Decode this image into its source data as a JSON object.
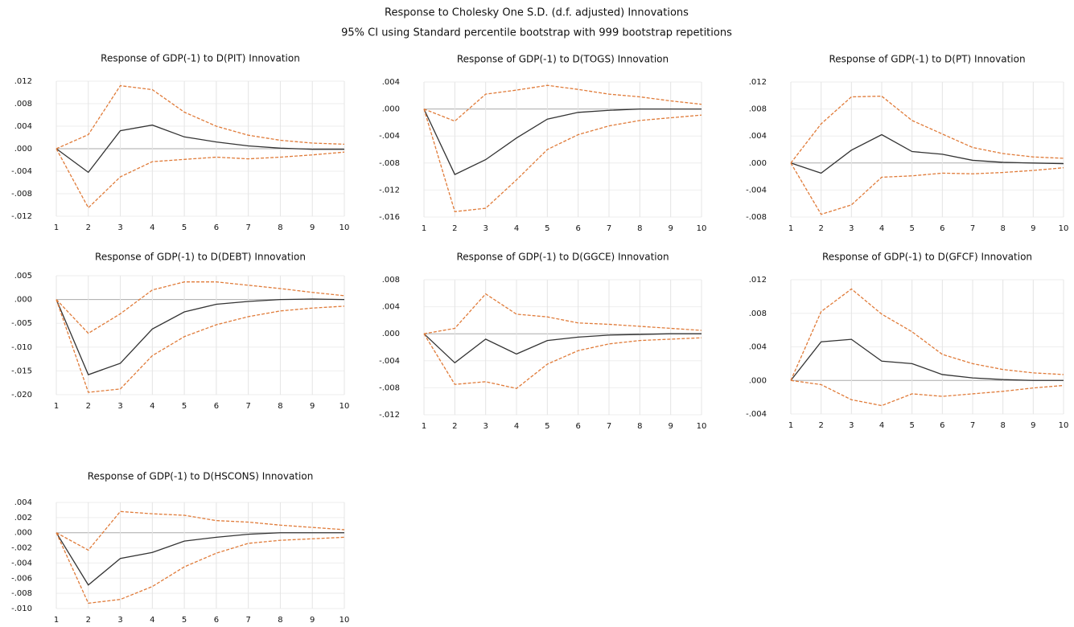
{
  "title": "Response to Cholesky One S.D. (d.f. adjusted) Innovations",
  "subtitle": "95% CI using Standard percentile bootstrap with 999 bootstrap repetitions",
  "chart_data": [
    {
      "type": "line",
      "title": "Response of GDP(-1) to D(PIT) Innovation",
      "categories": [
        "1",
        "2",
        "3",
        "4",
        "5",
        "6",
        "7",
        "8",
        "9",
        "10"
      ],
      "ylim": [
        -0.012,
        0.012
      ],
      "yticks": [
        {
          "value": 0.012,
          "label": ".012"
        },
        {
          "value": 0.008,
          "label": ".008"
        },
        {
          "value": 0.004,
          "label": ".004"
        },
        {
          "value": 0,
          "label": ".000"
        },
        {
          "value": -0.004,
          "label": "-.004"
        },
        {
          "value": -0.008,
          "label": "-.008"
        },
        {
          "value": -0.012,
          "label": "-.012"
        }
      ],
      "grid": true,
      "series": [
        {
          "color": "#333333",
          "style": "solid",
          "values": [
            0,
            -0.0042,
            0.0032,
            0.0042,
            0.0021,
            0.0012,
            0.0005,
            0.0001,
            -0.0001,
            -0.0001
          ]
        },
        {
          "color": "#e07b39",
          "style": "dashed",
          "values": [
            0,
            0.0025,
            0.0112,
            0.0105,
            0.0065,
            0.004,
            0.0024,
            0.0015,
            0.001,
            0.0008
          ]
        },
        {
          "color": "#e07b39",
          "style": "dashed",
          "values": [
            0,
            -0.0105,
            -0.005,
            -0.0023,
            -0.0019,
            -0.0015,
            -0.0018,
            -0.0015,
            -0.0011,
            -0.0006
          ]
        }
      ]
    },
    {
      "type": "line",
      "title": "Response of GDP(-1) to D(TOGS) Innovation",
      "categories": [
        "1",
        "2",
        "3",
        "4",
        "5",
        "6",
        "7",
        "8",
        "9",
        "10"
      ],
      "ylim": [
        -0.016,
        0.004
      ],
      "yticks": [
        {
          "value": 0.004,
          "label": ".004"
        },
        {
          "value": 0,
          "label": ".000"
        },
        {
          "value": -0.004,
          "label": "-.004"
        },
        {
          "value": -0.008,
          "label": "-.008"
        },
        {
          "value": -0.012,
          "label": "-.012"
        },
        {
          "value": -0.016,
          "label": "-.016"
        }
      ],
      "grid": true,
      "series": [
        {
          "color": "#333333",
          "style": "solid",
          "values": [
            0,
            -0.0097,
            -0.0075,
            -0.0043,
            -0.0015,
            -0.0005,
            -0.0002,
            0,
            0,
            0
          ]
        },
        {
          "color": "#e07b39",
          "style": "dashed",
          "values": [
            0,
            -0.0018,
            0.0022,
            0.0028,
            0.0035,
            0.0029,
            0.0022,
            0.0018,
            0.0012,
            0.0007
          ]
        },
        {
          "color": "#e07b39",
          "style": "dashed",
          "values": [
            0,
            -0.0152,
            -0.0147,
            -0.0105,
            -0.006,
            -0.0038,
            -0.0025,
            -0.0017,
            -0.0013,
            -0.0009
          ]
        }
      ]
    },
    {
      "type": "line",
      "title": "Response of GDP(-1) to D(PT) Innovation",
      "categories": [
        "1",
        "2",
        "3",
        "4",
        "5",
        "6",
        "7",
        "8",
        "9",
        "10"
      ],
      "ylim": [
        -0.008,
        0.012
      ],
      "yticks": [
        {
          "value": 0.012,
          "label": ".012"
        },
        {
          "value": 0.008,
          "label": ".008"
        },
        {
          "value": 0.004,
          "label": ".004"
        },
        {
          "value": 0,
          "label": ".000"
        },
        {
          "value": -0.004,
          "label": "-.004"
        },
        {
          "value": -0.008,
          "label": "-.008"
        }
      ],
      "grid": true,
      "series": [
        {
          "color": "#333333",
          "style": "solid",
          "values": [
            0,
            -0.0015,
            0.0019,
            0.0042,
            0.0017,
            0.0013,
            0.0004,
            0.0001,
            0,
            -0.0001
          ]
        },
        {
          "color": "#e07b39",
          "style": "dashed",
          "values": [
            0,
            0.0058,
            0.0098,
            0.0099,
            0.0063,
            0.0043,
            0.0023,
            0.0014,
            0.0009,
            0.0007
          ]
        },
        {
          "color": "#e07b39",
          "style": "dashed",
          "values": [
            0,
            -0.0076,
            -0.0062,
            -0.0021,
            -0.0019,
            -0.0015,
            -0.0016,
            -0.0014,
            -0.0011,
            -0.0007
          ]
        }
      ]
    },
    {
      "type": "line",
      "title": "Response of GDP(-1) to D(DEBT) Innovation",
      "categories": [
        "1",
        "2",
        "3",
        "4",
        "5",
        "6",
        "7",
        "8",
        "9",
        "10"
      ],
      "ylim": [
        -0.02,
        0.005
      ],
      "yticks": [
        {
          "value": 0.005,
          "label": ".005"
        },
        {
          "value": 0,
          "label": ".000"
        },
        {
          "value": -0.005,
          "label": "-.005"
        },
        {
          "value": -0.01,
          "label": "-.010"
        },
        {
          "value": -0.015,
          "label": "-.015"
        },
        {
          "value": -0.02,
          "label": "-.020"
        }
      ],
      "grid": true,
      "series": [
        {
          "color": "#333333",
          "style": "solid",
          "values": [
            0,
            -0.0158,
            -0.0134,
            -0.0062,
            -0.0026,
            -0.001,
            -0.0004,
            0,
            0.0001,
            0
          ]
        },
        {
          "color": "#e07b39",
          "style": "dashed",
          "values": [
            0,
            -0.0071,
            -0.003,
            0.002,
            0.0037,
            0.0037,
            0.003,
            0.0023,
            0.0015,
            0.0008
          ]
        },
        {
          "color": "#e07b39",
          "style": "dashed",
          "values": [
            0,
            -0.0195,
            -0.0188,
            -0.0118,
            -0.0078,
            -0.0053,
            -0.0036,
            -0.0024,
            -0.0018,
            -0.0014
          ]
        }
      ]
    },
    {
      "type": "line",
      "title": "Response of GDP(-1) to D(GGCE) Innovation",
      "categories": [
        "1",
        "2",
        "3",
        "4",
        "5",
        "6",
        "7",
        "8",
        "9",
        "10"
      ],
      "ylim": [
        -0.012,
        0.008
      ],
      "yticks": [
        {
          "value": 0.008,
          "label": ".008"
        },
        {
          "value": 0.004,
          "label": ".004"
        },
        {
          "value": 0,
          "label": ".000"
        },
        {
          "value": -0.004,
          "label": "-.004"
        },
        {
          "value": -0.008,
          "label": "-.008"
        },
        {
          "value": -0.012,
          "label": "-.012"
        }
      ],
      "grid": true,
      "series": [
        {
          "color": "#333333",
          "style": "solid",
          "values": [
            0,
            -0.0043,
            -0.0008,
            -0.003,
            -0.001,
            -0.0005,
            -0.0002,
            -0.0001,
            0,
            0
          ]
        },
        {
          "color": "#e07b39",
          "style": "dashed",
          "values": [
            0,
            0.0008,
            0.0059,
            0.0029,
            0.0025,
            0.0016,
            0.0014,
            0.0011,
            0.0008,
            0.0005
          ]
        },
        {
          "color": "#e07b39",
          "style": "dashed",
          "values": [
            0,
            -0.0075,
            -0.0071,
            -0.0081,
            -0.0045,
            -0.0025,
            -0.0015,
            -0.001,
            -0.0008,
            -0.0006
          ]
        }
      ]
    },
    {
      "type": "line",
      "title": "Response of GDP(-1) to D(GFCF) Innovation",
      "categories": [
        "1",
        "2",
        "3",
        "4",
        "5",
        "6",
        "7",
        "8",
        "9",
        "10"
      ],
      "ylim": [
        -0.004,
        0.012
      ],
      "yticks": [
        {
          "value": 0.012,
          "label": ".012"
        },
        {
          "value": 0.008,
          "label": ".008"
        },
        {
          "value": 0.004,
          "label": ".004"
        },
        {
          "value": 0,
          "label": ".000"
        },
        {
          "value": -0.004,
          "label": "-.004"
        }
      ],
      "grid": true,
      "series": [
        {
          "color": "#333333",
          "style": "solid",
          "values": [
            0,
            0.0046,
            0.0049,
            0.0023,
            0.002,
            0.0007,
            0.0003,
            0.0001,
            0,
            0
          ]
        },
        {
          "color": "#e07b39",
          "style": "dashed",
          "values": [
            0,
            0.0082,
            0.0109,
            0.0079,
            0.0058,
            0.0031,
            0.002,
            0.0013,
            0.0009,
            0.0007
          ]
        },
        {
          "color": "#e07b39",
          "style": "dashed",
          "values": [
            0,
            -0.0005,
            -0.0023,
            -0.003,
            -0.0016,
            -0.0019,
            -0.0016,
            -0.0013,
            -0.0009,
            -0.0006
          ]
        }
      ]
    },
    {
      "type": "line",
      "title": "Response of GDP(-1) to D(HSCONS) Innovation",
      "categories": [
        "1",
        "2",
        "3",
        "4",
        "5",
        "6",
        "7",
        "8",
        "9",
        "10"
      ],
      "ylim": [
        -0.01,
        0.004
      ],
      "yticks": [
        {
          "value": 0.004,
          "label": ".004"
        },
        {
          "value": 0.002,
          "label": ".002"
        },
        {
          "value": 0,
          "label": ".000"
        },
        {
          "value": -0.002,
          "label": "-.002"
        },
        {
          "value": -0.004,
          "label": "-.004"
        },
        {
          "value": -0.006,
          "label": "-.006"
        },
        {
          "value": -0.008,
          "label": "-.008"
        },
        {
          "value": -0.01,
          "label": "-.010"
        }
      ],
      "grid": true,
      "series": [
        {
          "color": "#333333",
          "style": "solid",
          "values": [
            0,
            -0.0069,
            -0.0034,
            -0.0026,
            -0.0011,
            -0.0006,
            -0.0002,
            0,
            0,
            0
          ]
        },
        {
          "color": "#e07b39",
          "style": "dashed",
          "values": [
            0,
            -0.0023,
            0.0028,
            0.0025,
            0.0023,
            0.0016,
            0.0014,
            0.001,
            0.0007,
            0.0004
          ]
        },
        {
          "color": "#e07b39",
          "style": "dashed",
          "values": [
            0,
            -0.0093,
            -0.0088,
            -0.0071,
            -0.0045,
            -0.0027,
            -0.0014,
            -0.001,
            -0.0008,
            -0.0006
          ]
        }
      ]
    }
  ]
}
